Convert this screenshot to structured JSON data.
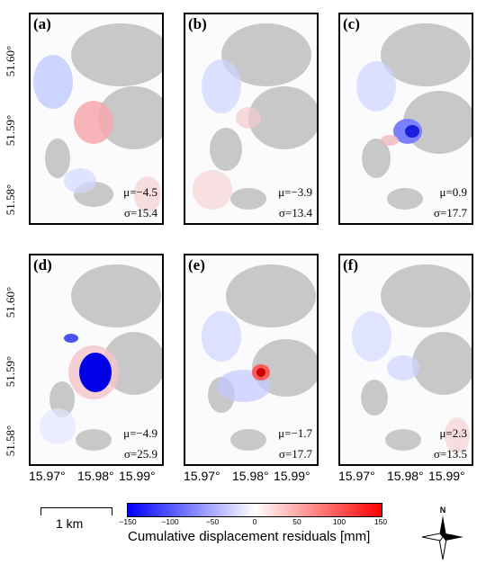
{
  "panels": [
    {
      "label": "(a)",
      "mu": "μ=−4.5",
      "sigma": "σ=15.4"
    },
    {
      "label": "(b)",
      "mu": "μ=−3.9",
      "sigma": "σ=13.4"
    },
    {
      "label": "(c)",
      "mu": "μ=0.9",
      "sigma": "σ=17.7"
    },
    {
      "label": "(d)",
      "mu": "μ=−4.9",
      "sigma": "σ=25.9"
    },
    {
      "label": "(e)",
      "mu": "μ=−1.7",
      "sigma": "σ=17.7"
    },
    {
      "label": "(f)",
      "mu": "μ=2.3",
      "sigma": "σ=13.5"
    }
  ],
  "axes": {
    "lat_ticks": [
      "51.60°",
      "51.59°",
      "51.58°"
    ],
    "lon_ticks": [
      "15.97°",
      "15.98°",
      "15.99°"
    ]
  },
  "scale_bar": {
    "label": "1 km"
  },
  "colorbar": {
    "title": "Cumulative displacement residuals [mm]",
    "ticks": [
      "−150",
      "−100",
      "−50",
      "0",
      "50",
      "100",
      "150"
    ],
    "min": -150,
    "max": 150,
    "colors": {
      "low": "#0000ff",
      "mid": "#ffffff",
      "high": "#ff0000"
    }
  },
  "compass": {
    "label": "N"
  },
  "colors": {
    "masked_area": "#c8c8c8"
  }
}
